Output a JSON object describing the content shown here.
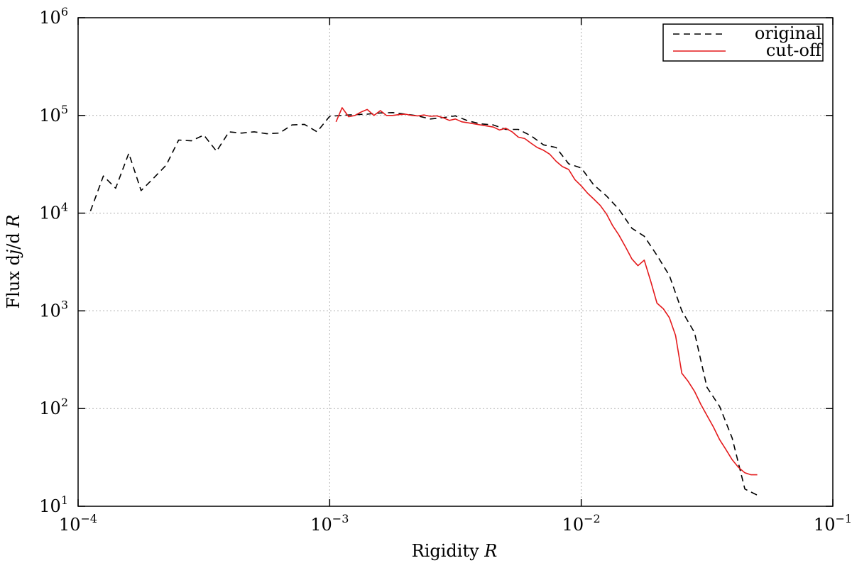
{
  "chart_data": {
    "type": "line",
    "xlabel": "Rigidity",
    "xlabel_var": "R",
    "ylabel_prefix": "Flux d",
    "ylabel_j": "j",
    "ylabel_mid": "/d",
    "ylabel_var": "R",
    "x_scale": "log",
    "y_scale": "log",
    "xlim": [
      0.0001,
      0.1
    ],
    "ylim": [
      10,
      1000000
    ],
    "grid": true,
    "legend_position": "top-right",
    "x_ticks": [
      {
        "base": "10",
        "exp": "−4",
        "value": 0.0001
      },
      {
        "base": "10",
        "exp": "−3",
        "value": 0.001
      },
      {
        "base": "10",
        "exp": "−2",
        "value": 0.01
      },
      {
        "base": "10",
        "exp": "−1",
        "value": 0.1
      }
    ],
    "y_ticks": [
      {
        "base": "10",
        "exp": "1",
        "value": 10
      },
      {
        "base": "10",
        "exp": "2",
        "value": 100
      },
      {
        "base": "10",
        "exp": "3",
        "value": 1000
      },
      {
        "base": "10",
        "exp": "4",
        "value": 10000
      },
      {
        "base": "10",
        "exp": "5",
        "value": 100000
      },
      {
        "base": "10",
        "exp": "6",
        "value": 1000000
      }
    ],
    "series": [
      {
        "name": "original",
        "color": "#000000",
        "style": "dashed",
        "x": [
          0.000112,
          0.000126,
          0.000141,
          0.000159,
          0.000178,
          0.0002,
          0.000224,
          0.000251,
          0.000282,
          0.000316,
          0.000355,
          0.000398,
          0.000447,
          0.000501,
          0.000562,
          0.000631,
          0.000708,
          0.000794,
          0.000891,
          0.001,
          0.00112,
          0.00126,
          0.00141,
          0.00159,
          0.00178,
          0.002,
          0.00224,
          0.00251,
          0.00282,
          0.00316,
          0.00355,
          0.00398,
          0.00447,
          0.00501,
          0.00562,
          0.00631,
          0.00708,
          0.00794,
          0.00891,
          0.01,
          0.0112,
          0.0126,
          0.0141,
          0.0159,
          0.0178,
          0.02,
          0.0224,
          0.0251,
          0.0282,
          0.0316,
          0.0355,
          0.0398,
          0.0447,
          0.0501
        ],
        "y": [
          10500,
          24000,
          18000,
          41000,
          17000,
          23000,
          31000,
          56000,
          55000,
          63000,
          43000,
          68000,
          66000,
          68000,
          65000,
          66000,
          80000,
          81000,
          68000,
          98000,
          100000,
          102000,
          103000,
          106000,
          107000,
          103000,
          99000,
          92000,
          95000,
          99000,
          88000,
          82000,
          80000,
          72000,
          72000,
          62000,
          50000,
          47000,
          32000,
          29000,
          19500,
          15000,
          11000,
          7000,
          5800,
          3700,
          2300,
          1000,
          600,
          165,
          105,
          50,
          15,
          13
        ]
      },
      {
        "name": "cut-off",
        "color": "#e41a1c",
        "style": "solid",
        "x": [
          0.00106,
          0.00112,
          0.00119,
          0.00126,
          0.00133,
          0.00141,
          0.0015,
          0.00159,
          0.00168,
          0.00178,
          0.00189,
          0.002,
          0.00212,
          0.00224,
          0.00237,
          0.00251,
          0.00266,
          0.00282,
          0.00299,
          0.00316,
          0.00335,
          0.00355,
          0.00376,
          0.00398,
          0.00422,
          0.00447,
          0.00473,
          0.00501,
          0.00531,
          0.00562,
          0.00596,
          0.00631,
          0.00668,
          0.00708,
          0.0075,
          0.00794,
          0.00841,
          0.00891,
          0.00944,
          0.01,
          0.0106,
          0.0112,
          0.0119,
          0.0126,
          0.0133,
          0.0141,
          0.015,
          0.0159,
          0.0168,
          0.0178,
          0.0189,
          0.02,
          0.0212,
          0.0224,
          0.0237,
          0.0251,
          0.0266,
          0.0282,
          0.0299,
          0.0316,
          0.0335,
          0.0355,
          0.0376,
          0.0398,
          0.0422,
          0.0447,
          0.0473,
          0.0501
        ],
        "y": [
          86000,
          120000,
          97000,
          100000,
          108000,
          115000,
          100000,
          112000,
          100000,
          100000,
          102000,
          103000,
          100000,
          99000,
          101000,
          98000,
          99000,
          95000,
          89000,
          92000,
          86000,
          84000,
          82000,
          80000,
          78000,
          76000,
          71000,
          74000,
          68000,
          60000,
          58000,
          52000,
          47000,
          44000,
          40000,
          34000,
          30000,
          28000,
          22000,
          19000,
          16000,
          14000,
          12000,
          9800,
          7500,
          6000,
          4500,
          3400,
          2900,
          3300,
          2000,
          1200,
          1050,
          850,
          560,
          230,
          190,
          150,
          110,
          85,
          65,
          48,
          38,
          30,
          25,
          22,
          21,
          21
        ]
      }
    ]
  }
}
